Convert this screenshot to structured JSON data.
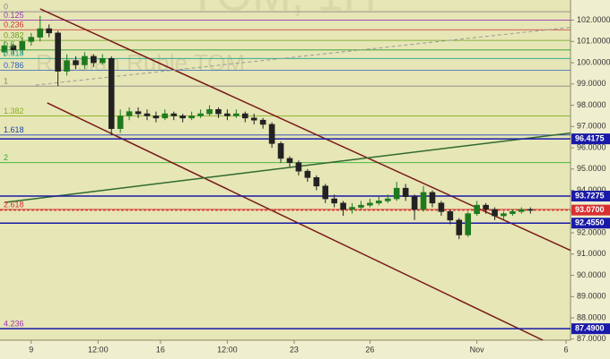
{
  "chart_data": {
    "type": "candlestick",
    "watermark_title": "TOM, 1H",
    "watermark_subtitle": "Russian Ruble TOM",
    "x": [
      0,
      1,
      2,
      3,
      4,
      5,
      6,
      7,
      8,
      9,
      10,
      11,
      12,
      13,
      14,
      15,
      16,
      17,
      18,
      19,
      20,
      21,
      22,
      23,
      24,
      25,
      26,
      27,
      28,
      29,
      30,
      31,
      32,
      33,
      34,
      35,
      36,
      37,
      38,
      39,
      40,
      41,
      42,
      43,
      44,
      45,
      46,
      47,
      48,
      49,
      50,
      51,
      52,
      53,
      54,
      55,
      56,
      57,
      58,
      59
    ],
    "open": [
      100.5,
      100.8,
      100.6,
      101.0,
      101.2,
      101.6,
      101.4,
      99.6,
      100.1,
      99.9,
      100.3,
      100.0,
      100.2,
      96.9,
      97.5,
      97.7,
      97.6,
      97.5,
      97.4,
      97.6,
      97.5,
      97.4,
      97.5,
      97.6,
      97.8,
      97.6,
      97.5,
      97.6,
      97.4,
      97.3,
      97.1,
      96.2,
      95.5,
      95.3,
      94.9,
      94.6,
      94.2,
      93.6,
      93.4,
      93.1,
      93.2,
      93.3,
      93.4,
      93.5,
      93.6,
      94.1,
      93.7,
      93.1,
      93.9,
      93.4,
      93.0,
      92.6,
      91.9,
      92.9,
      93.3,
      93.1,
      92.8,
      92.9,
      93.0,
      93.1
    ],
    "high": [
      101.0,
      100.9,
      101.2,
      101.4,
      102.2,
      101.8,
      101.5,
      100.4,
      100.3,
      100.5,
      100.4,
      100.4,
      100.3,
      97.8,
      97.9,
      97.9,
      97.8,
      97.7,
      97.8,
      97.7,
      97.6,
      97.7,
      97.8,
      98.0,
      97.9,
      97.8,
      97.8,
      97.7,
      97.6,
      97.4,
      97.2,
      96.3,
      95.6,
      95.4,
      95.0,
      94.7,
      94.3,
      93.8,
      93.5,
      93.4,
      93.5,
      93.6,
      93.7,
      93.8,
      94.4,
      94.3,
      93.8,
      94.2,
      94.0,
      93.5,
      93.1,
      92.7,
      93.0,
      93.5,
      93.4,
      93.2,
      93.0,
      93.1,
      93.2,
      93.2
    ],
    "low": [
      100.3,
      100.4,
      100.4,
      100.8,
      101.0,
      101.2,
      98.9,
      99.4,
      99.7,
      99.7,
      99.8,
      99.9,
      96.6,
      96.7,
      97.3,
      97.4,
      97.3,
      97.2,
      97.3,
      97.3,
      97.2,
      97.3,
      97.4,
      97.5,
      97.4,
      97.3,
      97.4,
      97.2,
      97.1,
      96.9,
      96.0,
      95.3,
      95.1,
      94.7,
      94.4,
      94.0,
      93.4,
      93.2,
      92.8,
      92.9,
      93.1,
      93.2,
      93.3,
      93.4,
      93.5,
      93.5,
      92.6,
      93.0,
      93.2,
      92.8,
      92.4,
      91.7,
      91.8,
      92.8,
      92.9,
      92.6,
      92.6,
      92.8,
      92.9,
      92.9
    ],
    "close": [
      100.8,
      100.6,
      101.0,
      101.2,
      101.6,
      101.4,
      99.6,
      100.1,
      99.9,
      100.3,
      100.0,
      100.2,
      96.9,
      97.5,
      97.7,
      97.6,
      97.5,
      97.4,
      97.6,
      97.5,
      97.4,
      97.5,
      97.6,
      97.8,
      97.6,
      97.5,
      97.6,
      97.4,
      97.3,
      97.1,
      96.2,
      95.5,
      95.3,
      94.9,
      94.6,
      94.2,
      93.6,
      93.4,
      93.1,
      93.2,
      93.3,
      93.4,
      93.5,
      93.6,
      94.1,
      93.7,
      93.1,
      93.9,
      93.4,
      93.0,
      92.6,
      91.9,
      92.9,
      93.3,
      93.1,
      92.8,
      92.9,
      93.0,
      93.1,
      93.07
    ],
    "up_color": "#1f7a1f",
    "down_color": "#222222",
    "xlim": [
      -0.5,
      63.5
    ],
    "xticks": [
      {
        "value": 3,
        "label": "9"
      },
      {
        "value": 10.5,
        "label": "12:00"
      },
      {
        "value": 17.5,
        "label": "16"
      },
      {
        "value": 25,
        "label": "12:00"
      },
      {
        "value": 32.5,
        "label": "23"
      },
      {
        "value": 41,
        "label": "26"
      },
      {
        "value": 53,
        "label": "Nov"
      },
      {
        "value": 63,
        "label": "6"
      }
    ],
    "ylim": [
      86.95,
      102.95
    ],
    "yticks": [
      {
        "value": 102,
        "label": "102.0000"
      },
      {
        "value": 101,
        "label": "101.0000"
      },
      {
        "value": 100,
        "label": "100.0000"
      },
      {
        "value": 99,
        "label": "99.0000"
      },
      {
        "value": 98,
        "label": "98.0000"
      },
      {
        "value": 97,
        "label": "97.0000"
      },
      {
        "value": 96,
        "label": "96.0000"
      },
      {
        "value": 95,
        "label": "95.0000"
      },
      {
        "value": 94,
        "label": "94.0000"
      },
      {
        "value": 93,
        "label": "93.0000"
      },
      {
        "value": 92,
        "label": "92.0000"
      },
      {
        "value": 91,
        "label": "91.0000"
      },
      {
        "value": 90,
        "label": "90.0000"
      },
      {
        "value": 89,
        "label": "89.0000"
      },
      {
        "value": 88,
        "label": "88.0000"
      },
      {
        "value": 87,
        "label": "87.0000"
      }
    ],
    "fib_levels": [
      {
        "label": "0",
        "price": 102.4,
        "color": "#888888"
      },
      {
        "label": "0.125",
        "price": 102.0,
        "color": "#9a3bb0"
      },
      {
        "label": "0.236",
        "price": 101.55,
        "color": "#d03030"
      },
      {
        "label": "0.382",
        "price": 101.05,
        "color": "#6aa020"
      },
      {
        "label": "0.5",
        "price": 100.6,
        "color": "#2a9a2a"
      },
      {
        "label": "0.618",
        "price": 100.2,
        "color": "#20a090"
      },
      {
        "label": "0.786",
        "price": 99.65,
        "color": "#3060c0"
      },
      {
        "label": "1",
        "price": 98.9,
        "color": "#888888"
      },
      {
        "label": "1.382",
        "price": 97.5,
        "color": "#8ab020"
      },
      {
        "label": "1.618",
        "price": 96.6,
        "color": "#2040b0"
      },
      {
        "label": "2",
        "price": 95.3,
        "color": "#30b030"
      },
      {
        "label": "2.618",
        "price": 93.1,
        "color": "#d03030"
      },
      {
        "label": "4.236",
        "price": 87.5,
        "color": "#a030b0"
      }
    ],
    "price_levels": [
      {
        "value": 96.4175,
        "label": "96.4175",
        "color": "#1a1aa8"
      },
      {
        "value": 93.7275,
        "label": "93.7275",
        "color": "#1a1aa8"
      },
      {
        "value": 93.07,
        "label": "93.0700",
        "color": "#d83030"
      },
      {
        "value": 92.455,
        "label": "92.4550",
        "color": "#1a1aa8"
      },
      {
        "value": 87.49,
        "label": "87.4900",
        "color": "#1a1aa8"
      }
    ],
    "trend_lines": [
      {
        "x": [
          4.0,
          64
        ],
        "y": [
          102.53,
          91.08
        ],
        "color": "#7a1a1a",
        "dashed": false
      },
      {
        "x": [
          4.8,
          60.4
        ],
        "y": [
          98.11,
          86.95
        ],
        "color": "#7a1a1a",
        "dashed": false
      },
      {
        "x": [
          0,
          64
        ],
        "y": [
          93.43,
          96.72
        ],
        "color": "#2f6a2f",
        "dashed": false
      },
      {
        "x": [
          3.5,
          64
        ],
        "y": [
          98.95,
          101.69
        ],
        "color": "#999999",
        "dashed": true
      }
    ]
  }
}
